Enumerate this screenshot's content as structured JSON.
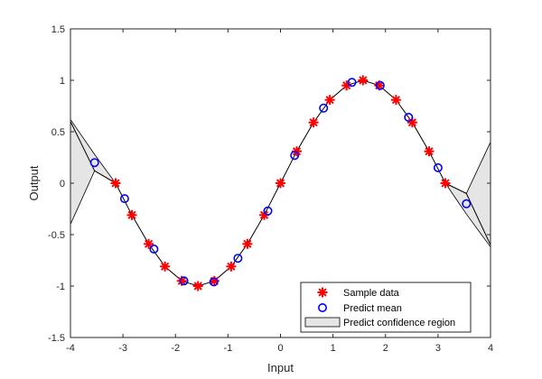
{
  "chart_data": {
    "type": "line",
    "title": "",
    "xlabel": "Input",
    "ylabel": "Output",
    "xlim": [
      -4,
      4
    ],
    "ylim": [
      -1.5,
      1.5
    ],
    "xticks": [
      "-4",
      "-3",
      "-2",
      "-1",
      "0",
      "1",
      "2",
      "3",
      "4"
    ],
    "yticks": [
      "-1.5",
      "-1",
      "-0.5",
      "0",
      "0.5",
      "1",
      "1.5"
    ],
    "grid": false,
    "legend_position": "bottom-right",
    "series": [
      {
        "name": "Sample data",
        "kind": "scatter",
        "marker": "asterisk",
        "color": "#ff0000",
        "x": [
          -3.14,
          -2.83,
          -2.51,
          -2.2,
          -1.88,
          -1.57,
          -1.26,
          -0.94,
          -0.63,
          -0.31,
          0.0,
          0.31,
          0.63,
          0.94,
          1.26,
          1.57,
          1.88,
          2.2,
          2.51,
          2.83,
          3.14
        ],
        "y": [
          0.0,
          -0.31,
          -0.59,
          -0.81,
          -0.95,
          -1.0,
          -0.95,
          -0.81,
          -0.59,
          -0.31,
          0.0,
          0.31,
          0.59,
          0.81,
          0.95,
          1.0,
          0.95,
          0.81,
          0.59,
          0.31,
          0.0
        ]
      },
      {
        "name": "Predict mean",
        "kind": "scatter",
        "marker": "circle",
        "color": "#0000ff",
        "x": [
          -3.54,
          -2.97,
          -2.41,
          -1.84,
          -1.27,
          -0.81,
          -0.24,
          0.27,
          0.82,
          1.36,
          1.9,
          2.44,
          3.0,
          3.54
        ],
        "y": [
          0.2,
          -0.15,
          -0.64,
          -0.95,
          -0.96,
          -0.73,
          -0.27,
          0.27,
          0.73,
          0.98,
          0.95,
          0.64,
          0.15,
          -0.2
        ]
      },
      {
        "name": "",
        "kind": "line",
        "color": "#000000",
        "x": [
          -4,
          -3.54,
          -3.14,
          -2.83,
          -2.51,
          -2.2,
          -1.88,
          -1.57,
          -1.26,
          -0.94,
          -0.63,
          -0.31,
          0.0,
          0.31,
          0.63,
          0.94,
          1.26,
          1.57,
          1.88,
          2.2,
          2.51,
          2.83,
          3.14,
          3.54,
          4
        ],
        "y": [
          0.6,
          0.12,
          0.0,
          -0.31,
          -0.59,
          -0.81,
          -0.95,
          -1.0,
          -0.95,
          -0.81,
          -0.59,
          -0.31,
          0.0,
          0.31,
          0.59,
          0.81,
          0.95,
          1.0,
          0.95,
          0.81,
          0.59,
          0.31,
          0.0,
          -0.1,
          -0.6
        ]
      }
    ],
    "confidence_region": {
      "name": "Predict confidence region",
      "fill": "#e5e5e5",
      "edge": "#000000",
      "upper": {
        "x": [
          -4,
          -3.54,
          -3.14,
          3.14,
          3.54,
          4
        ],
        "y": [
          0.62,
          0.28,
          0.0,
          0.0,
          -0.1,
          0.4
        ]
      },
      "lower": {
        "x": [
          -4,
          -3.54,
          -3.14,
          3.14,
          3.54,
          4
        ],
        "y": [
          -0.4,
          0.12,
          0.0,
          0.0,
          -0.3,
          -0.62
        ]
      }
    }
  }
}
